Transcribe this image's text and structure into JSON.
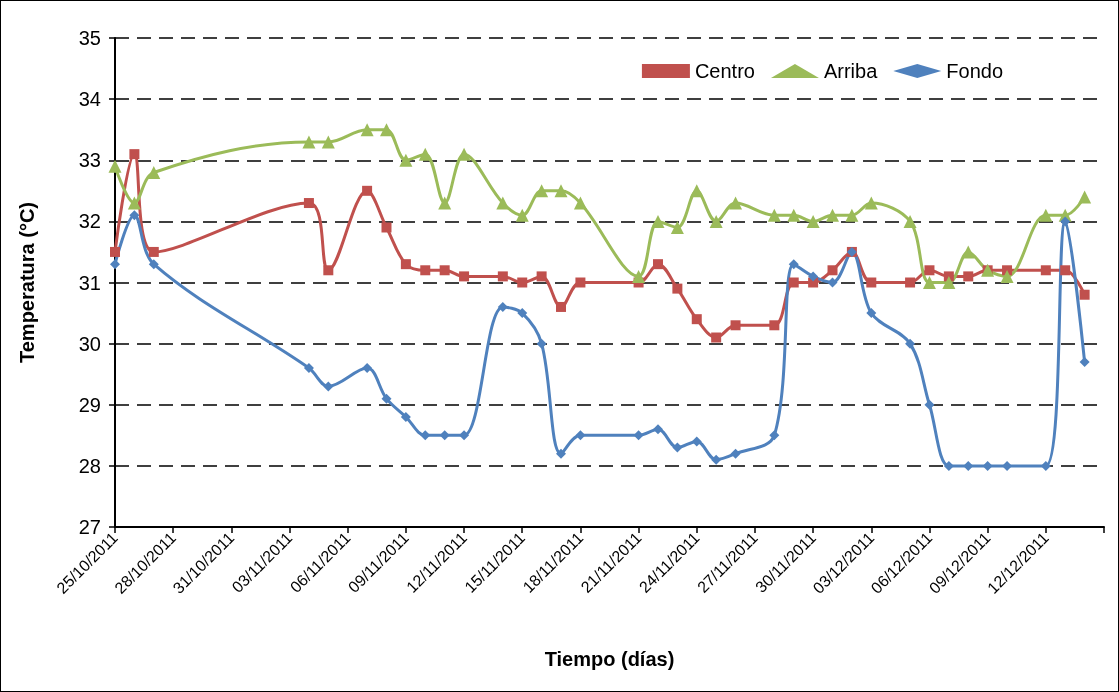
{
  "chart_data": {
    "type": "line",
    "xlabel": "Tiempo (días)",
    "ylabel": "Temperatura (°C)",
    "x": [
      "2011-10-25",
      "2011-10-26",
      "2011-10-27",
      "2011-11-04",
      "2011-11-05",
      "2011-11-07",
      "2011-11-08",
      "2011-11-09",
      "2011-11-10",
      "2011-11-11",
      "2011-11-12",
      "2011-11-14",
      "2011-11-15",
      "2011-11-16",
      "2011-11-17",
      "2011-11-18",
      "2011-11-21",
      "2011-11-22",
      "2011-11-23",
      "2011-11-24",
      "2011-11-25",
      "2011-11-26",
      "2011-11-28",
      "2011-11-29",
      "2011-11-30",
      "2011-12-01",
      "2011-12-02",
      "2011-12-03",
      "2011-12-05",
      "2011-12-06",
      "2011-12-07",
      "2011-12-08",
      "2011-12-09",
      "2011-12-10",
      "2011-12-12",
      "2011-12-13",
      "2011-12-14"
    ],
    "series": [
      {
        "name": "Centro",
        "color": "#c0504d",
        "marker": "square",
        "values": [
          31.5,
          33.1,
          31.5,
          32.3,
          31.2,
          32.5,
          31.9,
          31.3,
          31.2,
          31.2,
          31.1,
          31.1,
          31.0,
          31.1,
          30.6,
          31.0,
          31.0,
          31.3,
          30.9,
          30.4,
          30.1,
          30.3,
          30.3,
          31.0,
          31.0,
          31.2,
          31.5,
          31.0,
          31.0,
          31.2,
          31.1,
          31.1,
          31.2,
          31.2,
          31.2,
          31.2,
          30.8
        ]
      },
      {
        "name": "Arriba",
        "color": "#9bbb59",
        "marker": "triangle",
        "values": [
          32.9,
          32.3,
          32.8,
          33.3,
          33.3,
          33.5,
          33.5,
          33.0,
          33.1,
          32.3,
          33.1,
          32.3,
          32.1,
          32.5,
          32.5,
          32.3,
          31.1,
          32.0,
          31.9,
          32.5,
          32.0,
          32.3,
          32.1,
          32.1,
          32.0,
          32.1,
          32.1,
          32.3,
          32.0,
          31.0,
          31.0,
          31.5,
          31.2,
          31.1,
          32.1,
          32.1,
          32.4
        ]
      },
      {
        "name": "Fondo",
        "color": "#4f81bd",
        "marker": "diamond",
        "values": [
          31.3,
          32.1,
          31.3,
          29.6,
          29.3,
          29.6,
          29.1,
          28.8,
          28.5,
          28.5,
          28.5,
          30.6,
          30.5,
          30.0,
          28.2,
          28.5,
          28.5,
          28.6,
          28.3,
          28.4,
          28.1,
          28.2,
          28.5,
          31.3,
          31.1,
          31.0,
          31.5,
          30.5,
          30.0,
          29.0,
          28.0,
          28.0,
          28.0,
          28.0,
          28.0,
          32.0,
          29.7
        ]
      }
    ],
    "xlim": [
      "2011-10-25",
      "2011-12-15"
    ],
    "xticks": [
      {
        "value": "2011-10-25",
        "label": "25/10/2011"
      },
      {
        "value": "2011-10-28",
        "label": "28/10/2011"
      },
      {
        "value": "2011-10-31",
        "label": "31/10/2011"
      },
      {
        "value": "2011-11-03",
        "label": "03/11/2011"
      },
      {
        "value": "2011-11-06",
        "label": "06/11/2011"
      },
      {
        "value": "2011-11-09",
        "label": "09/11/2011"
      },
      {
        "value": "2011-11-12",
        "label": "12/11/2011"
      },
      {
        "value": "2011-11-15",
        "label": "15/11/2011"
      },
      {
        "value": "2011-11-18",
        "label": "18/11/2011"
      },
      {
        "value": "2011-11-21",
        "label": "21/11/2011"
      },
      {
        "value": "2011-11-24",
        "label": "24/11/2011"
      },
      {
        "value": "2011-11-27",
        "label": "27/11/2011"
      },
      {
        "value": "2011-11-30",
        "label": "30/11/2011"
      },
      {
        "value": "2011-12-03",
        "label": "03/12/2011"
      },
      {
        "value": "2011-12-06",
        "label": "06/12/2011"
      },
      {
        "value": "2011-12-09",
        "label": "09/12/2011"
      },
      {
        "value": "2011-12-12",
        "label": "12/12/2011"
      },
      {
        "value": "2011-12-15",
        "label": null
      }
    ],
    "ylim": [
      27,
      35
    ],
    "yticks": [
      27,
      28,
      29,
      30,
      31,
      32,
      33,
      34,
      35
    ],
    "grid": "y",
    "legend": "top right",
    "line_style": "solid"
  }
}
